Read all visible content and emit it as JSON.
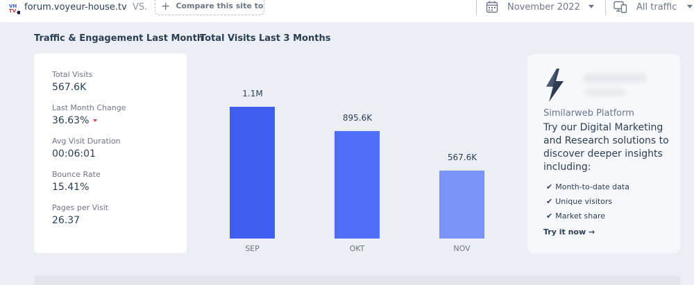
{
  "header": {
    "site_name": "forum.voyeur-house.tv",
    "vs_label": "VS.",
    "compare_label": "Compare this site to",
    "date_label": "November 2022",
    "traffic_label": "All traffic",
    "favicon_text": "VH TV"
  },
  "sections": {
    "engagement_title": "Traffic & Engagement Last Month",
    "visits_title": "Total Visits Last 3 Months"
  },
  "metrics": [
    {
      "label": "Total Visits",
      "value": "567.6K"
    },
    {
      "label": "Last Month Change",
      "value": "36.63%",
      "trend": "down"
    },
    {
      "label": "Avg Visit Duration",
      "value": "00:06:01"
    },
    {
      "label": "Bounce Rate",
      "value": "15.41%"
    },
    {
      "label": "Pages per Visit",
      "value": "26.37"
    }
  ],
  "chart_data": {
    "type": "bar",
    "title": "Total Visits Last 3 Months",
    "categories": [
      "SEP",
      "OKT",
      "NOV"
    ],
    "values": [
      1100000,
      895600,
      567600
    ],
    "data_labels": [
      "1.1M",
      "895.6K",
      "567.6K"
    ],
    "ylim": [
      0,
      1100000
    ],
    "colors": [
      "#3e5ff0",
      "#4f6ef7",
      "#7b94f7"
    ],
    "xlabel": "",
    "ylabel": ""
  },
  "promo": {
    "brand": "Similarweb Platform",
    "headline": "Try our Digital Marketing and Research solutions to discover deeper insights including:",
    "items": [
      "Month-to-date data",
      "Unique visitors",
      "Market share"
    ],
    "cta": "Try it now",
    "cta_arrow": "→"
  },
  "colors": {
    "accent": "#3e5ff0",
    "negative": "#e33c4f",
    "background": "#eceef5"
  }
}
